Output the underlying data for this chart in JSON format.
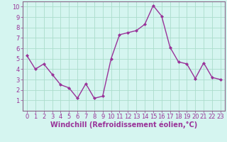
{
  "x": [
    0,
    1,
    2,
    3,
    4,
    5,
    6,
    7,
    8,
    9,
    10,
    11,
    12,
    13,
    14,
    15,
    16,
    17,
    18,
    19,
    20,
    21,
    22,
    23
  ],
  "y": [
    5.3,
    4.0,
    4.5,
    3.5,
    2.5,
    2.2,
    1.2,
    2.6,
    1.2,
    1.4,
    5.0,
    7.3,
    7.5,
    7.7,
    8.3,
    10.1,
    9.1,
    6.1,
    4.7,
    4.5,
    3.1,
    4.6,
    3.2,
    3.0
  ],
  "line_color": "#993399",
  "marker": "D",
  "marker_size": 2.0,
  "line_width": 1.0,
  "bg_color": "#d5f5f0",
  "grid_color": "#aaddcc",
  "xlabel": "Windchill (Refroidissement éolien,°C)",
  "xlabel_color": "#993399",
  "tick_color": "#993399",
  "axis_color": "#886688",
  "ylim": [
    0,
    10.5
  ],
  "xlim": [
    -0.5,
    23.5
  ],
  "yticks": [
    1,
    2,
    3,
    4,
    5,
    6,
    7,
    8,
    9,
    10
  ],
  "xticks": [
    0,
    1,
    2,
    3,
    4,
    5,
    6,
    7,
    8,
    9,
    10,
    11,
    12,
    13,
    14,
    15,
    16,
    17,
    18,
    19,
    20,
    21,
    22,
    23
  ],
  "font_size": 6.0,
  "xlabel_font_size": 7.0
}
